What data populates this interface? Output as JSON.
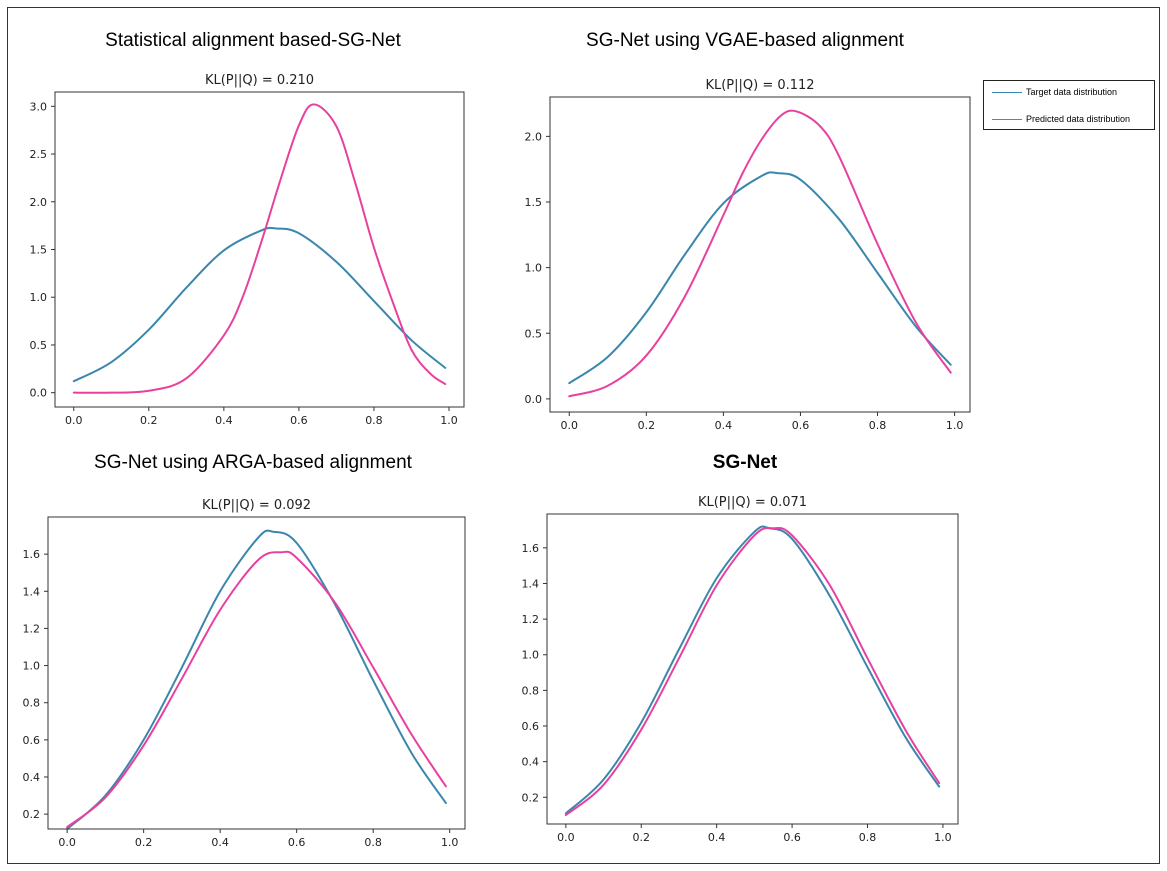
{
  "figure": {
    "legend": [
      {
        "label": "Target data distribution",
        "color": "#3a87ad"
      },
      {
        "label": "Predicted data distribution",
        "color": "#b34fd0"
      }
    ],
    "line_colors": {
      "target": "#3a87ad",
      "predicted": "#e8409e"
    }
  },
  "chart_data": [
    {
      "type": "line",
      "title": "Statistical alignment based-SG-Net",
      "subtitle": "KL(P||Q) = 0.210",
      "xlabel": "",
      "ylabel": "",
      "xlim": [
        -0.05,
        1.04
      ],
      "ylim": [
        -0.15,
        3.15
      ],
      "xticks": [
        "0.0",
        "0.2",
        "0.4",
        "0.6",
        "0.8",
        "1.0"
      ],
      "yticks": [
        "0.0",
        "0.5",
        "1.0",
        "1.5",
        "2.0",
        "2.5",
        "3.0"
      ],
      "series": [
        {
          "x": [
            0.0,
            0.1,
            0.2,
            0.3,
            0.4,
            0.5,
            0.54,
            0.6,
            0.7,
            0.8,
            0.9,
            0.99
          ],
          "values": [
            0.12,
            0.32,
            0.66,
            1.1,
            1.49,
            1.7,
            1.72,
            1.67,
            1.37,
            0.96,
            0.55,
            0.26
          ]
        },
        {
          "x": [
            0.0,
            0.1,
            0.2,
            0.3,
            0.4,
            0.45,
            0.5,
            0.55,
            0.6,
            0.64,
            0.7,
            0.75,
            0.8,
            0.85,
            0.9,
            0.95,
            0.99
          ],
          "values": [
            0.0,
            0.0,
            0.02,
            0.15,
            0.6,
            1.0,
            1.58,
            2.22,
            2.8,
            3.02,
            2.79,
            2.2,
            1.52,
            0.95,
            0.45,
            0.2,
            0.09
          ]
        }
      ]
    },
    {
      "type": "line",
      "title": "SG-Net using VGAE-based alignment",
      "subtitle": "KL(P||Q) = 0.112",
      "xlabel": "",
      "ylabel": "",
      "xlim": [
        -0.05,
        1.04
      ],
      "ylim": [
        -0.1,
        2.3
      ],
      "xticks": [
        "0.0",
        "0.2",
        "0.4",
        "0.6",
        "0.8",
        "1.0"
      ],
      "yticks": [
        "0.0",
        "0.5",
        "1.0",
        "1.5",
        "2.0"
      ],
      "series": [
        {
          "x": [
            0.0,
            0.1,
            0.2,
            0.3,
            0.4,
            0.5,
            0.54,
            0.6,
            0.7,
            0.8,
            0.9,
            0.99
          ],
          "values": [
            0.12,
            0.32,
            0.66,
            1.1,
            1.49,
            1.7,
            1.72,
            1.67,
            1.37,
            0.96,
            0.55,
            0.26
          ]
        },
        {
          "x": [
            0.0,
            0.1,
            0.2,
            0.3,
            0.4,
            0.45,
            0.5,
            0.55,
            0.59,
            0.65,
            0.7,
            0.8,
            0.9,
            0.99
          ],
          "values": [
            0.02,
            0.1,
            0.33,
            0.78,
            1.4,
            1.72,
            1.98,
            2.16,
            2.19,
            2.08,
            1.85,
            1.18,
            0.58,
            0.2
          ]
        }
      ]
    },
    {
      "type": "line",
      "title": "SG-Net using ARGA-based alignment",
      "subtitle": "KL(P||Q) = 0.092",
      "xlabel": "",
      "ylabel": "",
      "xlim": [
        -0.05,
        1.04
      ],
      "ylim": [
        0.12,
        1.8
      ],
      "xticks": [
        "0.0",
        "0.2",
        "0.4",
        "0.6",
        "0.8",
        "1.0"
      ],
      "yticks": [
        "0.2",
        "0.4",
        "0.6",
        "0.8",
        "1.0",
        "1.2",
        "1.4",
        "1.6"
      ],
      "series": [
        {
          "x": [
            0.0,
            0.1,
            0.2,
            0.3,
            0.4,
            0.5,
            0.54,
            0.6,
            0.7,
            0.8,
            0.9,
            0.99
          ],
          "values": [
            0.12,
            0.3,
            0.6,
            0.99,
            1.4,
            1.69,
            1.72,
            1.66,
            1.33,
            0.92,
            0.53,
            0.26
          ]
        },
        {
          "x": [
            0.0,
            0.1,
            0.2,
            0.3,
            0.4,
            0.5,
            0.56,
            0.6,
            0.7,
            0.8,
            0.9,
            0.99
          ],
          "values": [
            0.13,
            0.29,
            0.57,
            0.93,
            1.3,
            1.57,
            1.61,
            1.58,
            1.34,
            0.99,
            0.63,
            0.35
          ]
        }
      ]
    },
    {
      "type": "line",
      "title": "SG-Net",
      "subtitle": "KL(P||Q) = 0.071",
      "xlabel": "",
      "ylabel": "",
      "xlim": [
        -0.05,
        1.04
      ],
      "ylim": [
        0.05,
        1.79
      ],
      "xticks": [
        "0.0",
        "0.2",
        "0.4",
        "0.6",
        "0.8",
        "1.0"
      ],
      "yticks": [
        "0.2",
        "0.4",
        "0.6",
        "0.8",
        "1.0",
        "1.2",
        "1.4",
        "1.6"
      ],
      "series": [
        {
          "x": [
            0.0,
            0.1,
            0.2,
            0.3,
            0.4,
            0.5,
            0.54,
            0.6,
            0.7,
            0.8,
            0.9,
            0.99
          ],
          "values": [
            0.11,
            0.3,
            0.62,
            1.03,
            1.43,
            1.69,
            1.71,
            1.65,
            1.33,
            0.93,
            0.54,
            0.26
          ]
        },
        {
          "x": [
            0.0,
            0.1,
            0.2,
            0.3,
            0.4,
            0.5,
            0.55,
            0.6,
            0.7,
            0.8,
            0.9,
            0.99
          ],
          "values": [
            0.1,
            0.27,
            0.58,
            0.98,
            1.39,
            1.67,
            1.71,
            1.67,
            1.39,
            0.98,
            0.58,
            0.28
          ]
        }
      ]
    }
  ]
}
